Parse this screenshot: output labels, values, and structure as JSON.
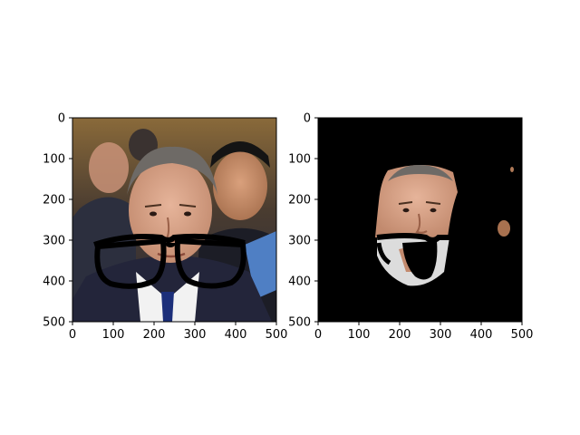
{
  "chart_data": [
    {
      "type": "image",
      "title": "",
      "xlabel": "",
      "ylabel": "",
      "xlim": [
        0,
        500
      ],
      "ylim": [
        500,
        0
      ],
      "xticks": [
        "0",
        "100",
        "200",
        "300",
        "400",
        "500"
      ],
      "yticks": [
        "0",
        "100",
        "200",
        "300",
        "400",
        "500"
      ],
      "content_icon": "photo-two-men-with-drawn-eyeglasses-icon",
      "background_color": "#5a4a38"
    },
    {
      "type": "image",
      "title": "",
      "xlabel": "",
      "ylabel": "",
      "xlim": [
        0,
        500
      ],
      "ylim": [
        500,
        0
      ],
      "xticks": [
        "0",
        "100",
        "200",
        "300",
        "400",
        "500"
      ],
      "yticks": [
        "0",
        "100",
        "200",
        "300",
        "400",
        "500"
      ],
      "content_icon": "segmented-face-mask-icon",
      "background_color": "#000000"
    }
  ]
}
